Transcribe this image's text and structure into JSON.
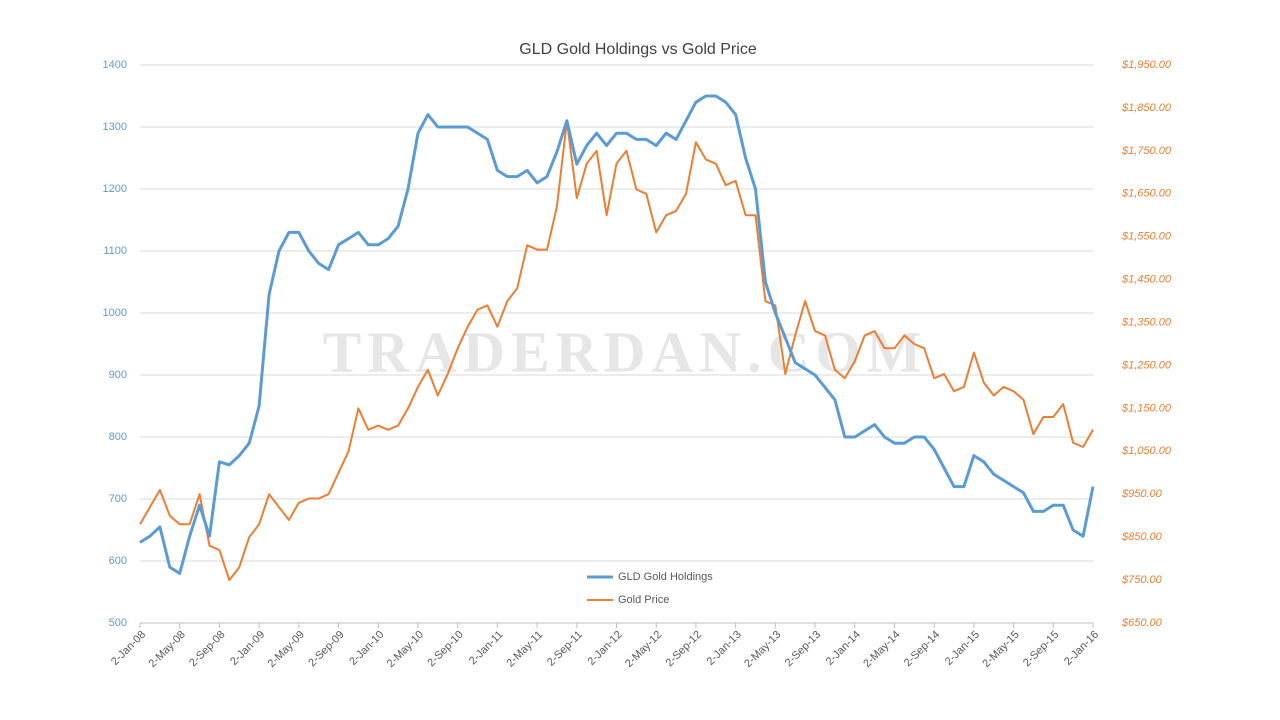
{
  "chart_data": {
    "type": "line",
    "title": "GLD Gold Holdings vs Gold Price",
    "watermark": "TRADERDAN.COM",
    "categories": [
      "2-Jan-08",
      null,
      null,
      null,
      "2-May-08",
      null,
      null,
      null,
      "2-Sep-08",
      null,
      null,
      null,
      "2-Jan-09",
      null,
      null,
      null,
      "2-May-09",
      null,
      null,
      null,
      "2-Sep-09",
      null,
      null,
      null,
      "2-Jan-10",
      null,
      null,
      null,
      "2-May-10",
      null,
      null,
      null,
      "2-Sep-10",
      null,
      null,
      null,
      "2-Jan-11",
      null,
      null,
      null,
      "2-May-11",
      null,
      null,
      null,
      "2-Sep-11",
      null,
      null,
      null,
      "2-Jan-12",
      null,
      null,
      null,
      "2-May-12",
      null,
      null,
      null,
      "2-Sep-12",
      null,
      null,
      null,
      "2-Jan-13",
      null,
      null,
      null,
      "2-May-13",
      null,
      null,
      null,
      "2-Sep-13",
      null,
      null,
      null,
      "2-Jan-14",
      null,
      null,
      null,
      "2-May-14",
      null,
      null,
      null,
      "2-Sep-14",
      null,
      null,
      null,
      "2-Jan-15",
      null,
      null,
      null,
      "2-May-15",
      null,
      null,
      null,
      "2-Sep-15",
      null,
      null,
      null,
      "2-Jan-16"
    ],
    "series": [
      {
        "name": "GLD Gold Holdings",
        "color": "#5b9bd5",
        "axis": "y",
        "values": [
          630,
          640,
          655,
          590,
          580,
          640,
          690,
          640,
          760,
          755,
          770,
          790,
          850,
          1030,
          1100,
          1130,
          1130,
          1100,
          1080,
          1070,
          1110,
          1120,
          1130,
          1110,
          1110,
          1120,
          1140,
          1200,
          1290,
          1320,
          1300,
          1300,
          1300,
          1300,
          1290,
          1280,
          1230,
          1220,
          1220,
          1230,
          1210,
          1220,
          1260,
          1310,
          1240,
          1270,
          1290,
          1270,
          1290,
          1290,
          1280,
          1280,
          1270,
          1290,
          1280,
          1310,
          1340,
          1350,
          1350,
          1340,
          1320,
          1250,
          1200,
          1050,
          1000,
          960,
          920,
          910,
          900,
          880,
          860,
          800,
          800,
          810,
          820,
          800,
          790,
          790,
          800,
          800,
          780,
          750,
          720,
          720,
          770,
          760,
          740,
          730,
          720,
          710,
          680,
          680,
          690,
          690,
          650,
          640,
          720
        ]
      },
      {
        "name": "Gold Price",
        "color": "#ed7d31",
        "axis": "y2",
        "values": [
          880,
          920,
          960,
          900,
          880,
          880,
          950,
          830,
          820,
          750,
          780,
          850,
          880,
          950,
          920,
          890,
          930,
          940,
          940,
          950,
          1000,
          1050,
          1150,
          1100,
          1110,
          1100,
          1110,
          1150,
          1200,
          1240,
          1180,
          1230,
          1290,
          1340,
          1380,
          1390,
          1340,
          1400,
          1430,
          1530,
          1520,
          1520,
          1620,
          1820,
          1640,
          1720,
          1750,
          1600,
          1720,
          1750,
          1660,
          1650,
          1560,
          1600,
          1610,
          1650,
          1770,
          1730,
          1720,
          1670,
          1680,
          1600,
          1600,
          1400,
          1390,
          1230,
          1320,
          1400,
          1330,
          1320,
          1240,
          1220,
          1260,
          1320,
          1330,
          1290,
          1290,
          1320,
          1300,
          1290,
          1220,
          1230,
          1190,
          1200,
          1280,
          1210,
          1180,
          1200,
          1190,
          1170,
          1090,
          1130,
          1130,
          1160,
          1070,
          1060,
          1100
        ]
      }
    ],
    "ylim": [
      500,
      1400
    ],
    "yticks": [
      500,
      600,
      700,
      800,
      900,
      1000,
      1100,
      1200,
      1300,
      1400
    ],
    "y2lim": [
      650,
      1950
    ],
    "y2ticks": [
      {
        "value": 650,
        "label": "$650.00"
      },
      {
        "value": 750,
        "label": "$750.00"
      },
      {
        "value": 850,
        "label": "$850.00"
      },
      {
        "value": 950,
        "label": "$950.00"
      },
      {
        "value": 1050,
        "label": "$1,050.00"
      },
      {
        "value": 1150,
        "label": "$1,150.00"
      },
      {
        "value": 1250,
        "label": "$1,250.00"
      },
      {
        "value": 1350,
        "label": "$1,350.00"
      },
      {
        "value": 1450,
        "label": "$1,450.00"
      },
      {
        "value": 1550,
        "label": "$1,550.00"
      },
      {
        "value": 1650,
        "label": "$1,650.00"
      },
      {
        "value": 1750,
        "label": "$1,750.00"
      },
      {
        "value": 1850,
        "label": "$1,850.00"
      },
      {
        "value": 1950,
        "label": "$1,950.00"
      }
    ],
    "grid": true,
    "legend": "bottom-center"
  }
}
